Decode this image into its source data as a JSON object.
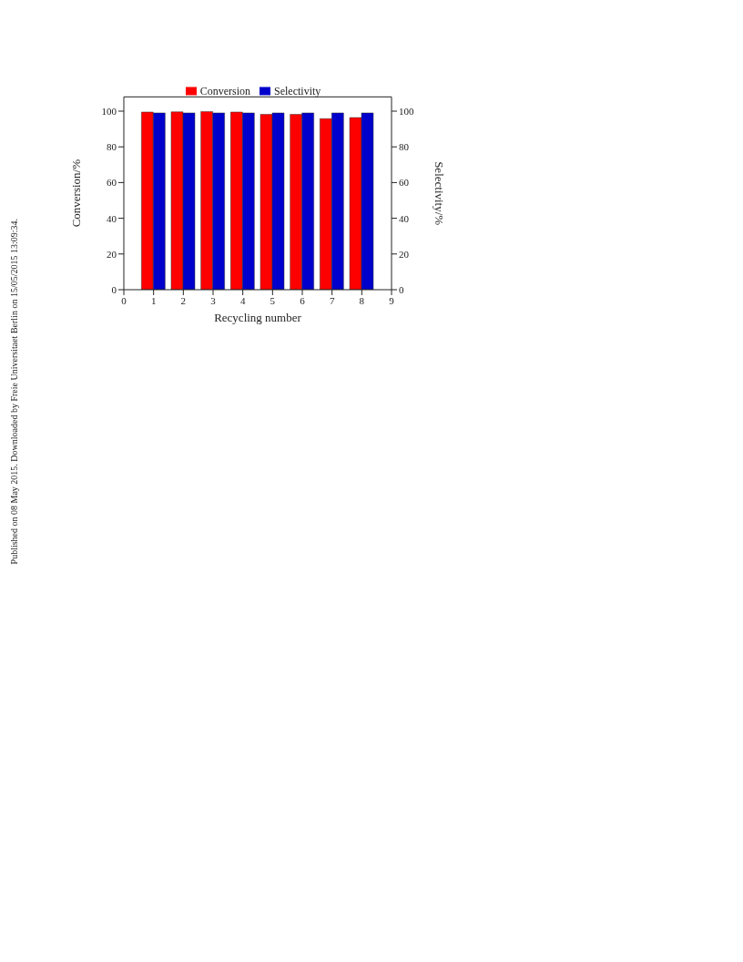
{
  "chart_data": {
    "type": "bar",
    "xlabel": "Recycling number",
    "ylabel": "Conversion/%",
    "y2label": "Selectivity/%",
    "x": [
      1,
      2,
      3,
      4,
      5,
      6,
      7,
      8
    ],
    "series": [
      {
        "name": "Conversion",
        "color": "#ff0000",
        "values": [
          99.5,
          99.6,
          99.8,
          99.5,
          98.2,
          98.2,
          95.8,
          96.4
        ]
      },
      {
        "name": "Selectivity",
        "color": "#0000cc",
        "values": [
          99,
          99,
          99,
          99,
          99,
          99,
          99,
          99
        ]
      }
    ],
    "xlim": [
      0,
      9
    ],
    "xticks": [
      0,
      1,
      2,
      3,
      4,
      5,
      6,
      7,
      8,
      9
    ],
    "ylim": [
      0,
      108
    ],
    "yticks": [
      0,
      20,
      40,
      60,
      80,
      100
    ],
    "y2lim": [
      0,
      108
    ],
    "y2ticks": [
      0,
      20,
      40,
      60,
      80,
      100
    ],
    "legend": "top",
    "grid": false,
    "annotations": [
      "Published on 08 May 2015. Downloaded by Freie Universitaet Berlin on 15/05/2015 13:09:34."
    ]
  }
}
